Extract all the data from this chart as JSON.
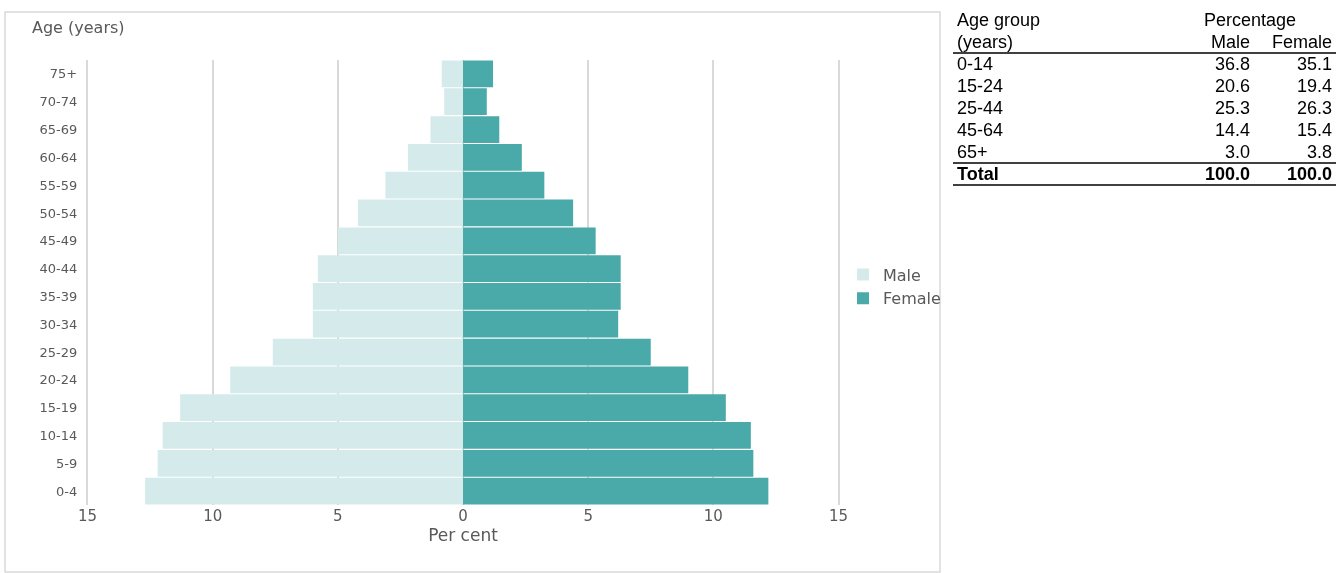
{
  "chart_data": [
    {
      "type": "bar",
      "orientation": "horizontal",
      "ylabel": "Age (years)",
      "xlabel": "Per cent",
      "categories": [
        "75+",
        "70-74",
        "65-69",
        "60-64",
        "55-59",
        "50-54",
        "45-49",
        "40-44",
        "35-39",
        "30-34",
        "25-29",
        "20-24",
        "15-19",
        "10-14",
        "5-9",
        "0-4"
      ],
      "series": [
        {
          "name": "Male",
          "color": "#d5ebeb",
          "values": [
            -0.85,
            -0.75,
            -1.3,
            -2.2,
            -3.1,
            -4.2,
            -5.0,
            -5.8,
            -6.0,
            -6.0,
            -7.6,
            -9.3,
            -11.3,
            -12.0,
            -12.2,
            -12.7
          ]
        },
        {
          "name": "Female",
          "color": "#4aa9a9",
          "values": [
            1.2,
            0.95,
            1.45,
            2.35,
            3.25,
            4.4,
            5.3,
            6.3,
            6.3,
            6.2,
            7.5,
            9.0,
            10.5,
            11.5,
            11.6,
            12.2
          ]
        }
      ],
      "xlim": [
        -15,
        15
      ],
      "stacked": true,
      "xticks": [
        {
          "value": -15,
          "label": "15"
        },
        {
          "value": -10,
          "label": "10"
        },
        {
          "value": -5,
          "label": "5"
        },
        0,
        5,
        10,
        15
      ],
      "grid": "x",
      "legend": "right"
    },
    {
      "type": "other",
      "annotations": [
        "Age group",
        "Percentage",
        "(years)",
        "Male",
        "Female",
        "0-14",
        "36.8",
        "35.1",
        "15-24",
        "20.6",
        "19.4",
        "25-44",
        "25.3",
        "26.3",
        "45-64",
        "14.4",
        "15.4",
        "65+",
        "3.0",
        "3.8",
        "Total",
        "100.0",
        "100.0"
      ]
    }
  ]
}
